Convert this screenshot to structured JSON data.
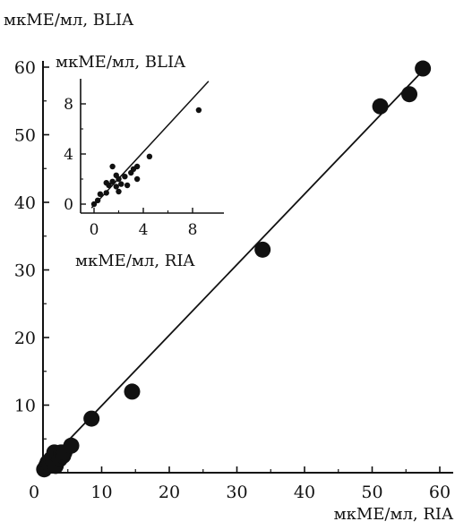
{
  "chart_data": [
    {
      "type": "scatter",
      "title": "",
      "xlabel": "мкМЕ/мл, RIA",
      "ylabel": "мкМЕ/мл, BLIA",
      "xlim": [
        0,
        62
      ],
      "ylim": [
        0,
        65
      ],
      "xticks": [
        0,
        10,
        20,
        30,
        40,
        50,
        60
      ],
      "yticks": [
        10,
        20,
        30,
        40,
        50,
        60
      ],
      "tick_labels_x": [
        "0",
        "10",
        "20",
        "30",
        "40",
        "50",
        "60"
      ],
      "tick_labels_y": [
        "10",
        "20",
        "30",
        "40",
        "50",
        "60"
      ],
      "grid": false,
      "colors": {
        "points": "#111111",
        "line": "#111111",
        "axes": "#111111"
      },
      "points": [
        {
          "x": 1.5,
          "y": 0.5
        },
        {
          "x": 1.8,
          "y": 1.0
        },
        {
          "x": 2.0,
          "y": 1.5
        },
        {
          "x": 2.3,
          "y": 1.2
        },
        {
          "x": 2.5,
          "y": 2.0
        },
        {
          "x": 2.8,
          "y": 1.8
        },
        {
          "x": 3.0,
          "y": 3.0
        },
        {
          "x": 3.2,
          "y": 1.0
        },
        {
          "x": 3.5,
          "y": 2.5
        },
        {
          "x": 3.8,
          "y": 2.0
        },
        {
          "x": 4.0,
          "y": 3.0
        },
        {
          "x": 4.3,
          "y": 2.5
        },
        {
          "x": 4.5,
          "y": 3.0
        },
        {
          "x": 5.5,
          "y": 4.0
        },
        {
          "x": 8.5,
          "y": 8.0
        },
        {
          "x": 14.5,
          "y": 12.0
        },
        {
          "x": 33.8,
          "y": 33.0
        },
        {
          "x": 51.2,
          "y": 54.2
        },
        {
          "x": 55.5,
          "y": 56.0
        },
        {
          "x": 57.5,
          "y": 59.8
        }
      ],
      "fit_line": [
        {
          "x": 0.5,
          "y": 0.0
        },
        {
          "x": 58.0,
          "y": 60.0
        }
      ]
    },
    {
      "type": "scatter",
      "title": "",
      "xlabel": "мкМЕ/мл, RIA",
      "ylabel": "мкМЕ/мл, BLIA",
      "xlim": [
        -0.8,
        9.5
      ],
      "ylim": [
        -1.0,
        10.0
      ],
      "xticks": [
        0,
        4,
        8
      ],
      "yticks": [
        0,
        4,
        8
      ],
      "tick_labels_x": [
        "0",
        "4",
        "8"
      ],
      "tick_labels_y": [
        "0",
        "4",
        "8"
      ],
      "grid": false,
      "colors": {
        "points": "#111111",
        "line": "#111111",
        "axes": "#111111"
      },
      "points": [
        {
          "x": 0.0,
          "y": 0.0
        },
        {
          "x": 0.3,
          "y": 0.3
        },
        {
          "x": 0.5,
          "y": 0.8
        },
        {
          "x": 1.0,
          "y": 0.9
        },
        {
          "x": 1.2,
          "y": 1.5
        },
        {
          "x": 1.0,
          "y": 1.7
        },
        {
          "x": 1.5,
          "y": 1.8
        },
        {
          "x": 1.8,
          "y": 1.4
        },
        {
          "x": 2.0,
          "y": 2.0
        },
        {
          "x": 2.2,
          "y": 1.6
        },
        {
          "x": 2.5,
          "y": 2.2
        },
        {
          "x": 1.8,
          "y": 2.3
        },
        {
          "x": 3.0,
          "y": 2.5
        },
        {
          "x": 3.2,
          "y": 2.8
        },
        {
          "x": 3.5,
          "y": 3.0
        },
        {
          "x": 4.5,
          "y": 3.8
        },
        {
          "x": 3.5,
          "y": 2.0
        },
        {
          "x": 1.5,
          "y": 3.0
        },
        {
          "x": 2.7,
          "y": 1.5
        },
        {
          "x": 2.0,
          "y": 1.0
        },
        {
          "x": 8.5,
          "y": 7.5
        }
      ],
      "fit_line": [
        {
          "x": -0.2,
          "y": -0.3
        },
        {
          "x": 9.3,
          "y": 9.8
        }
      ]
    }
  ]
}
